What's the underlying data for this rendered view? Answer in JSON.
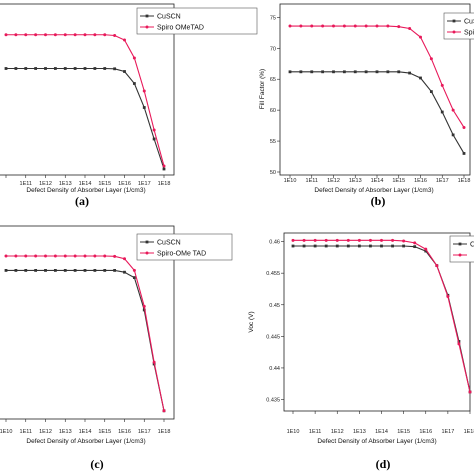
{
  "colors": {
    "cuscn": "#333333",
    "spiro": "#e8195a",
    "frame": "#222222",
    "background": "#ffffff"
  },
  "chart_data": [
    {
      "panel": "(a)",
      "type": "line",
      "x_tick_labels": [
        "",
        "1E11",
        "1E12",
        "1E13",
        "1E14",
        "1E15",
        "1E16",
        "1E17",
        "1E18"
      ],
      "x_log10": [
        10,
        11,
        12,
        13,
        14,
        15,
        16,
        17,
        18
      ],
      "xlabel": "Defect Density of Absorber Layer  (1/cm3)",
      "ylabel": "",
      "y_tick_labels": [],
      "ylim": [
        0,
        1
      ],
      "legend": "top-right",
      "series": [
        {
          "name": "CuSCN",
          "color_key": "cuscn",
          "marker": "square",
          "x": [
            10,
            10.5,
            11,
            11.5,
            12,
            12.5,
            13,
            13.5,
            14,
            14.5,
            15,
            15.5,
            16,
            16.5,
            17,
            17.5,
            18
          ],
          "y": [
            0.73,
            0.73,
            0.73,
            0.73,
            0.73,
            0.73,
            0.73,
            0.73,
            0.73,
            0.73,
            0.73,
            0.728,
            0.71,
            0.63,
            0.47,
            0.26,
            0.06
          ]
        },
        {
          "name": "Spiro OMeTAD",
          "color_key": "spiro",
          "marker": "circle",
          "x": [
            10,
            10.5,
            11,
            11.5,
            12,
            12.5,
            13,
            13.5,
            14,
            14.5,
            15,
            15.5,
            16,
            16.5,
            17,
            17.5,
            18
          ],
          "y": [
            0.955,
            0.955,
            0.955,
            0.955,
            0.955,
            0.955,
            0.955,
            0.955,
            0.955,
            0.955,
            0.955,
            0.95,
            0.92,
            0.8,
            0.58,
            0.32,
            0.08
          ]
        }
      ]
    },
    {
      "panel": "(b)",
      "type": "line",
      "x_tick_labels": [
        "1E10",
        "1E11",
        "1E12",
        "1E13",
        "1E14",
        "1E15",
        "1E16",
        "1E17",
        "1E18"
      ],
      "x_log10": [
        10,
        11,
        12,
        13,
        14,
        15,
        16,
        17,
        18
      ],
      "xlabel": "Defect Density of Absorber Layer  (1/cm3)",
      "ylabel": "Fill Factor (%)",
      "y_tick_labels": [
        "50",
        "55",
        "60",
        "65",
        "70",
        "75"
      ],
      "y_ticks": [
        50,
        55,
        60,
        65,
        70,
        75
      ],
      "ylim": [
        50,
        77
      ],
      "legend": "top-right",
      "series": [
        {
          "name": "CuSCN",
          "color_key": "cuscn",
          "marker": "square",
          "x": [
            10,
            10.5,
            11,
            11.5,
            12,
            12.5,
            13,
            13.5,
            14,
            14.5,
            15,
            15.5,
            16,
            16.5,
            17,
            17.5,
            18
          ],
          "y": [
            66.2,
            66.2,
            66.2,
            66.2,
            66.2,
            66.2,
            66.2,
            66.2,
            66.2,
            66.2,
            66.2,
            66.0,
            65.2,
            63.0,
            59.7,
            56.0,
            53.0
          ]
        },
        {
          "name": "Spiro OMeTAD",
          "color_key": "spiro",
          "marker": "circle",
          "x": [
            10,
            10.5,
            11,
            11.5,
            12,
            12.5,
            13,
            13.5,
            14,
            14.5,
            15,
            15.5,
            16,
            16.5,
            17,
            17.5,
            18
          ],
          "y": [
            73.6,
            73.6,
            73.6,
            73.6,
            73.6,
            73.6,
            73.6,
            73.6,
            73.6,
            73.6,
            73.5,
            73.2,
            71.8,
            68.3,
            64.0,
            60.0,
            57.2
          ]
        }
      ]
    },
    {
      "panel": "(c)",
      "type": "line",
      "x_tick_labels": [
        "1E10",
        "1E11",
        "1E12",
        "1E13",
        "1E14",
        "1E15",
        "1E16",
        "1E17",
        "1E18"
      ],
      "x_log10": [
        10,
        11,
        12,
        13,
        14,
        15,
        16,
        17,
        18
      ],
      "xlabel": "Defect Density of Absorber Layer  (1/cm3)",
      "ylabel": "",
      "y_tick_labels": [],
      "ylim": [
        0,
        1
      ],
      "legend": "top-right",
      "series": [
        {
          "name": "CuSCN",
          "color_key": "cuscn",
          "marker": "square",
          "x": [
            10,
            10.5,
            11,
            11.5,
            12,
            12.5,
            13,
            13.5,
            14,
            14.5,
            15,
            15.5,
            16,
            16.5,
            17,
            17.5,
            18
          ],
          "y": [
            0.82,
            0.82,
            0.82,
            0.82,
            0.82,
            0.82,
            0.82,
            0.82,
            0.82,
            0.82,
            0.82,
            0.82,
            0.81,
            0.78,
            0.6,
            0.3,
            0.04
          ]
        },
        {
          "name": "Spiro-OMe TAD",
          "color_key": "spiro",
          "marker": "circle",
          "x": [
            10,
            10.5,
            11,
            11.5,
            12,
            12.5,
            13,
            13.5,
            14,
            14.5,
            15,
            15.5,
            16,
            16.5,
            17,
            17.5,
            18
          ],
          "y": [
            0.9,
            0.9,
            0.9,
            0.9,
            0.9,
            0.9,
            0.9,
            0.9,
            0.9,
            0.9,
            0.9,
            0.898,
            0.885,
            0.82,
            0.62,
            0.31,
            0.04
          ]
        }
      ]
    },
    {
      "panel": "(d)",
      "type": "line",
      "x_tick_labels": [
        "1E10",
        "1E11",
        "1E12",
        "1E13",
        "1E14",
        "1E15",
        "1E16",
        "1E17",
        "1E18"
      ],
      "x_log10": [
        10,
        11,
        12,
        13,
        14,
        15,
        16,
        17,
        18
      ],
      "xlabel": "Defect Density of Absorber Layer  (1/cm3)",
      "ylabel": "Voc (V)",
      "y_tick_labels": [
        "0.435",
        "0.44",
        "0.445",
        "0.45",
        "0.455",
        "0.46"
      ],
      "y_ticks": [
        0.435,
        0.44,
        0.445,
        0.45,
        0.455,
        0.46
      ],
      "ylim": [
        0.4335,
        0.4612
      ],
      "legend": "top-right",
      "series": [
        {
          "name": "Cu",
          "color_key": "cuscn",
          "marker": "square",
          "x": [
            10,
            10.5,
            11,
            11.5,
            12,
            12.5,
            13,
            13.5,
            14,
            14.5,
            15,
            15.5,
            16,
            16.5,
            17,
            17.5,
            18
          ],
          "y": [
            0.4593,
            0.4593,
            0.4593,
            0.4593,
            0.4593,
            0.4593,
            0.4593,
            0.4593,
            0.4593,
            0.4593,
            0.4593,
            0.4592,
            0.4585,
            0.4562,
            0.4515,
            0.4442,
            0.4362
          ]
        },
        {
          "name": "",
          "color_key": "spiro",
          "marker": "circle",
          "x": [
            10,
            10.5,
            11,
            11.5,
            12,
            12.5,
            13,
            13.5,
            14,
            14.5,
            15,
            15.5,
            16,
            16.5,
            17,
            17.5,
            18
          ],
          "y": [
            0.4602,
            0.4602,
            0.4602,
            0.4602,
            0.4602,
            0.4602,
            0.4602,
            0.4602,
            0.4602,
            0.4602,
            0.4601,
            0.4598,
            0.4588,
            0.4562,
            0.4513,
            0.4438,
            0.4362
          ]
        }
      ]
    }
  ]
}
